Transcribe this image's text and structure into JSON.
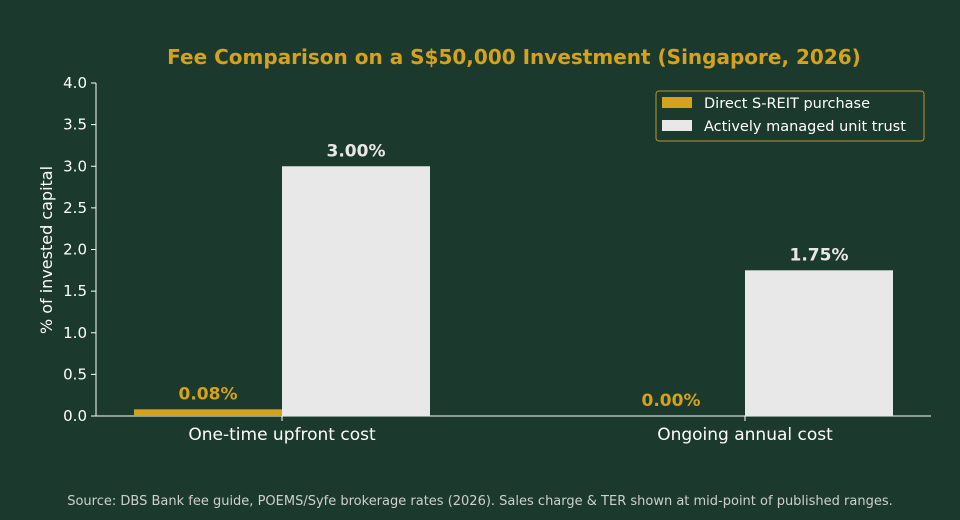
{
  "chart_data": {
    "type": "bar",
    "title": "Fee Comparison on a S$50,000 Investment (Singapore, 2026)",
    "ylabel": "% of invested capital",
    "xlabel": "",
    "ylim": [
      0,
      4.0
    ],
    "yticks": [
      "0.0",
      "0.5",
      "1.0",
      "1.5",
      "2.0",
      "2.5",
      "3.0",
      "3.5",
      "4.0"
    ],
    "categories": [
      "One-time upfront cost",
      "Ongoing annual cost"
    ],
    "series": [
      {
        "name": "Direct S-REIT purchase",
        "values": [
          0.08,
          0.0
        ],
        "labels": [
          "0.08%",
          "0.00%"
        ],
        "color": "#d4a21c"
      },
      {
        "name": "Actively managed unit trust",
        "values": [
          3.0,
          1.75
        ],
        "labels": [
          "3.00%",
          "1.75%"
        ],
        "color": "#e8e8e8"
      }
    ],
    "legend_position": "top-right",
    "grid": false,
    "source": "Source: DBS Bank fee guide, POEMS/Syfe brokerage rates (2026). Sales charge & TER shown at mid-point of published ranges."
  },
  "colors": {
    "background": "#1b3a2d",
    "title": "#d4a21c",
    "text": "#ffffff",
    "axis": "#ffffff",
    "source": "#cfcfcf",
    "legend_border": "#b8952a"
  }
}
